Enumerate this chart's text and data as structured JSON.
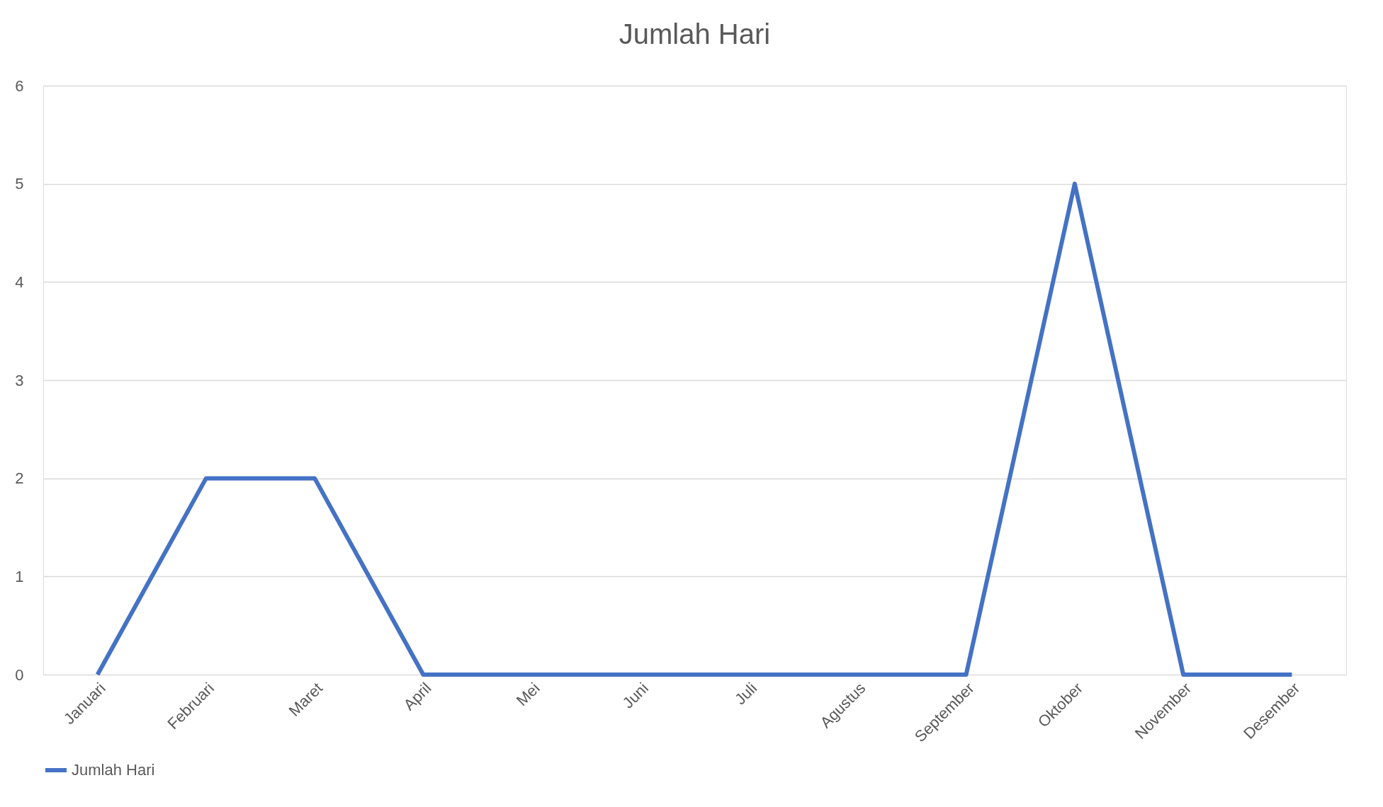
{
  "chart_data": {
    "type": "line",
    "title": "Jumlah Hari",
    "categories": [
      "Januari",
      "Februari",
      "Maret",
      "April",
      "Mei",
      "Juni",
      "Juli",
      "Agustus",
      "September",
      "Oktober",
      "November",
      "Desember"
    ],
    "series": [
      {
        "name": "Jumlah Hari",
        "color": "#4472c4",
        "values": [
          0,
          2,
          2,
          0,
          0,
          0,
          0,
          0,
          0,
          5,
          0,
          0
        ]
      }
    ],
    "ylim": [
      0,
      6
    ],
    "yticks": [
      0,
      1,
      2,
      3,
      4,
      5,
      6
    ],
    "grid": "y",
    "legend": "bottom",
    "marker": "none"
  }
}
